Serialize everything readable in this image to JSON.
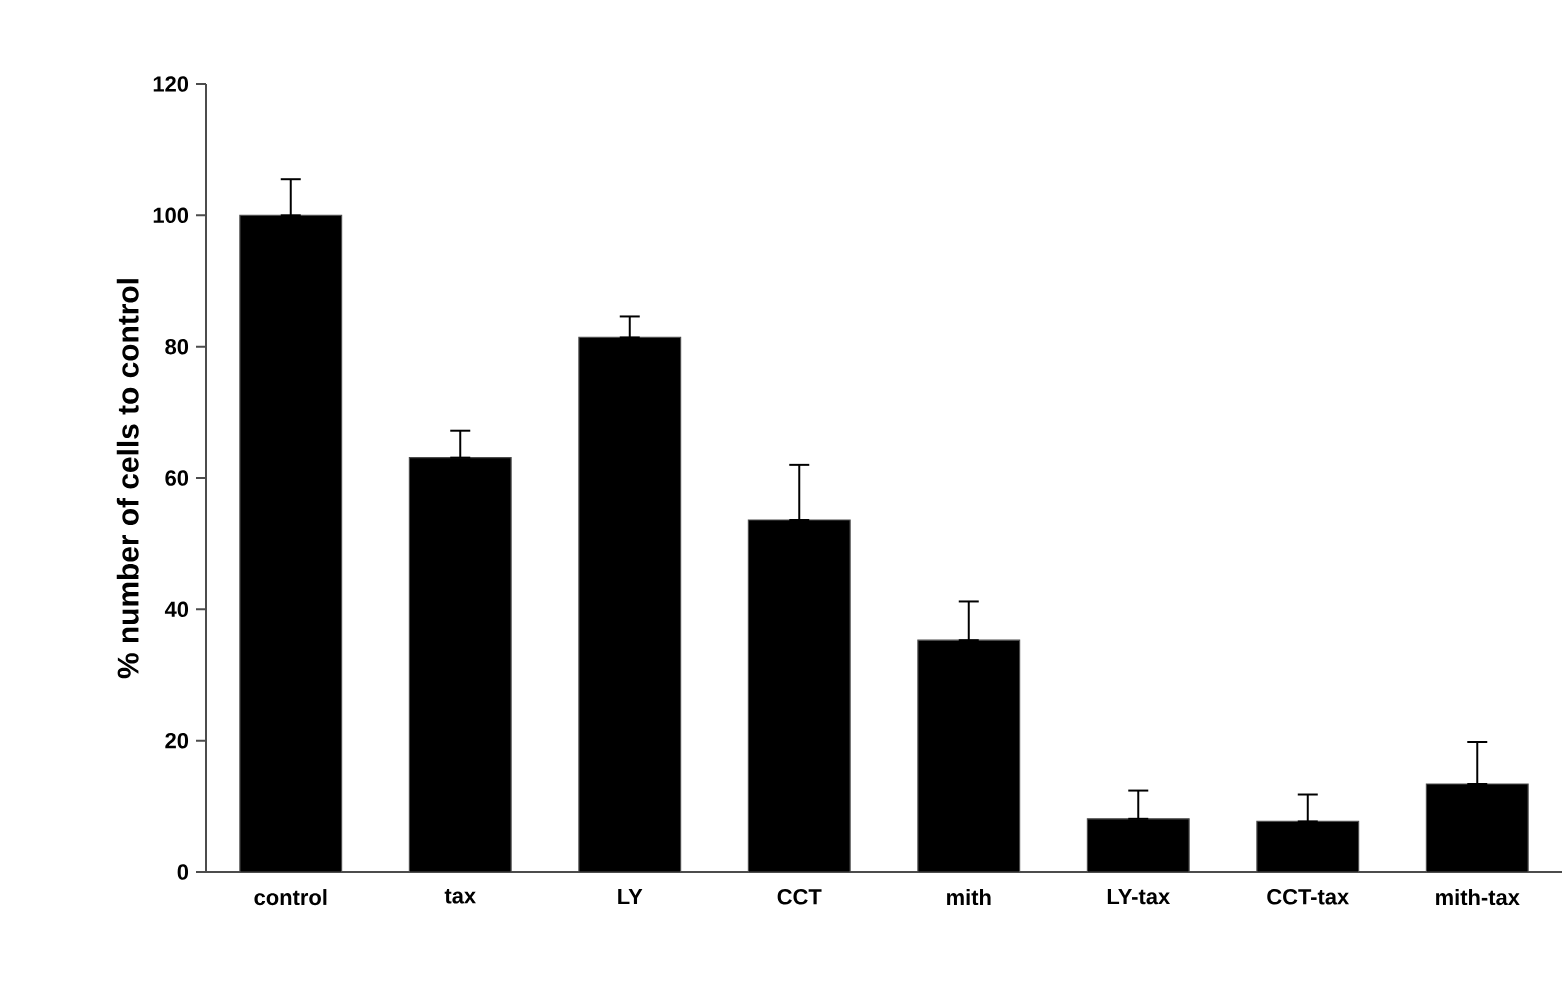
{
  "chart_data": {
    "type": "bar",
    "ylabel": "% number of cells to control",
    "categories": [
      "control",
      "tax",
      "LY",
      "CCT",
      "mith",
      "LY-tax",
      "CCT-tax",
      "mith-tax"
    ],
    "values": [
      100,
      63.1,
      81.4,
      53.6,
      35.3,
      8.1,
      7.7,
      13.4
    ],
    "errors": [
      [
        100,
        105.5
      ],
      [
        63.1,
        67.2
      ],
      [
        81.4,
        84.6
      ],
      [
        53.6,
        62
      ],
      [
        35.3,
        41.2
      ],
      [
        8.1,
        12.4
      ],
      [
        7.7,
        11.8
      ],
      [
        13.4,
        19.8
      ]
    ],
    "color": "#000000",
    "ylim": [
      0,
      120
    ],
    "yticks": [
      0,
      20,
      40,
      60,
      80,
      100,
      120
    ],
    "grid": false
  }
}
